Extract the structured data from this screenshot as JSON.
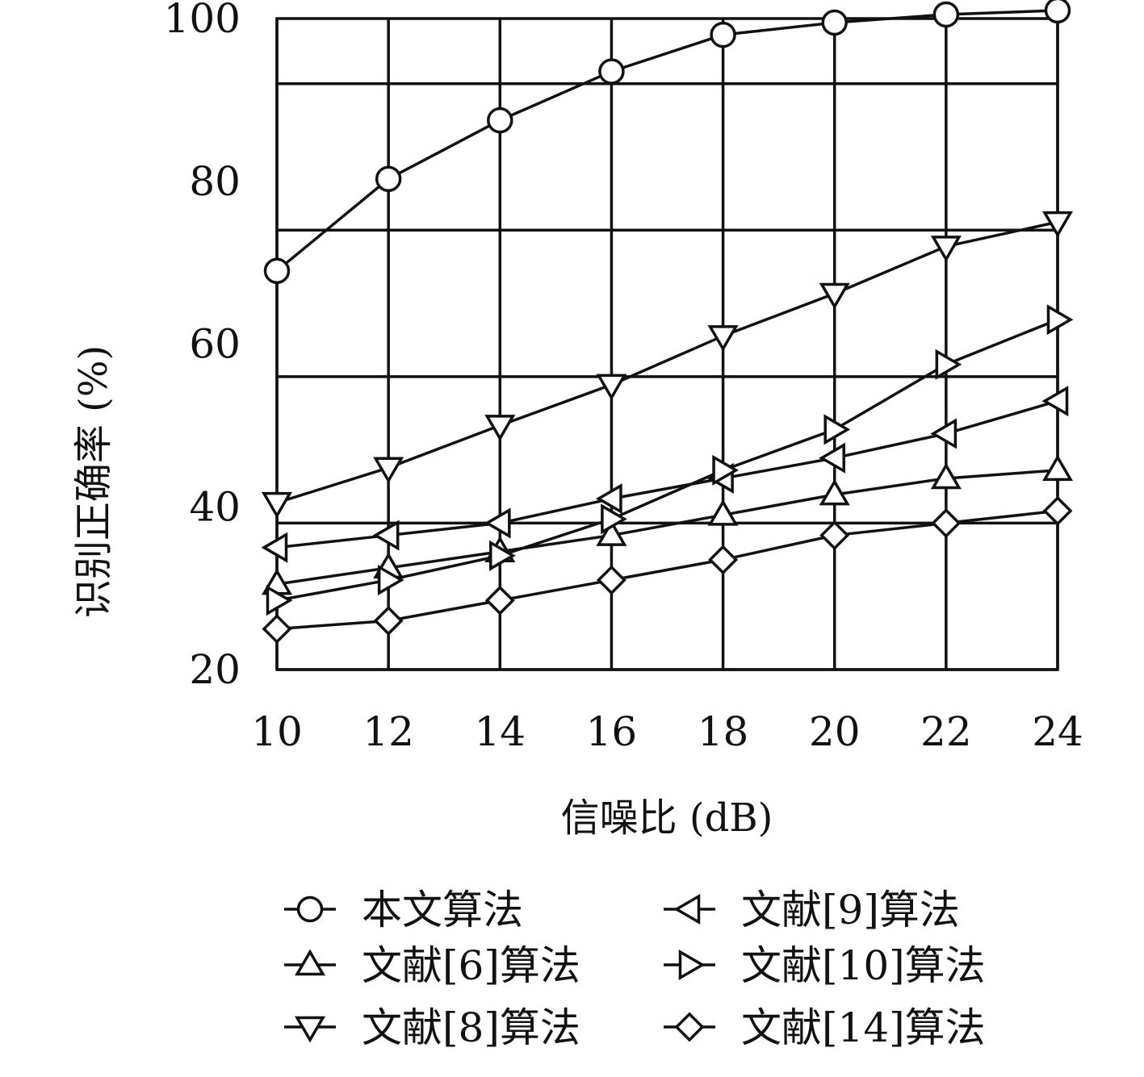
{
  "chart_data": {
    "type": "line",
    "title": "",
    "xlabel": "信噪比 (dB)",
    "ylabel": "识别正确率 (%)",
    "x": [
      10,
      12,
      14,
      16,
      18,
      20,
      22,
      24
    ],
    "x_ticks": [
      "10",
      "12",
      "14",
      "16",
      "18",
      "20",
      "22",
      "24"
    ],
    "xlim": [
      10,
      24
    ],
    "y_ticks": [
      "20",
      "40",
      "60",
      "80",
      "100"
    ],
    "ylim": [
      20,
      100
    ],
    "grid": true,
    "legend_position": "bottom",
    "series": [
      {
        "name": "本文算法",
        "marker": "circle",
        "values": [
          69,
          80.3,
          87.5,
          93.5,
          98,
          99.5,
          100.5,
          101
        ]
      },
      {
        "name": "文献[6]算法",
        "marker": "triangle-up",
        "values": [
          30.5,
          32.5,
          34.5,
          36.5,
          39,
          41.5,
          43.5,
          44.5
        ]
      },
      {
        "name": "文献[8]算法",
        "marker": "triangle-down",
        "values": [
          40.5,
          44.8,
          50,
          55,
          61,
          66.2,
          72,
          75
        ]
      },
      {
        "name": "文献[9]算法",
        "marker": "triangle-left",
        "values": [
          35,
          36.5,
          38,
          41,
          43.5,
          46,
          49,
          53
        ]
      },
      {
        "name": "文献[10]算法",
        "marker": "triangle-right",
        "values": [
          28.5,
          31,
          34,
          38.5,
          44.5,
          49.5,
          57.5,
          63
        ]
      },
      {
        "name": "文献[14]算法",
        "marker": "diamond",
        "values": [
          25,
          26,
          28.5,
          31,
          33.5,
          36.5,
          38,
          39.5
        ]
      }
    ]
  }
}
